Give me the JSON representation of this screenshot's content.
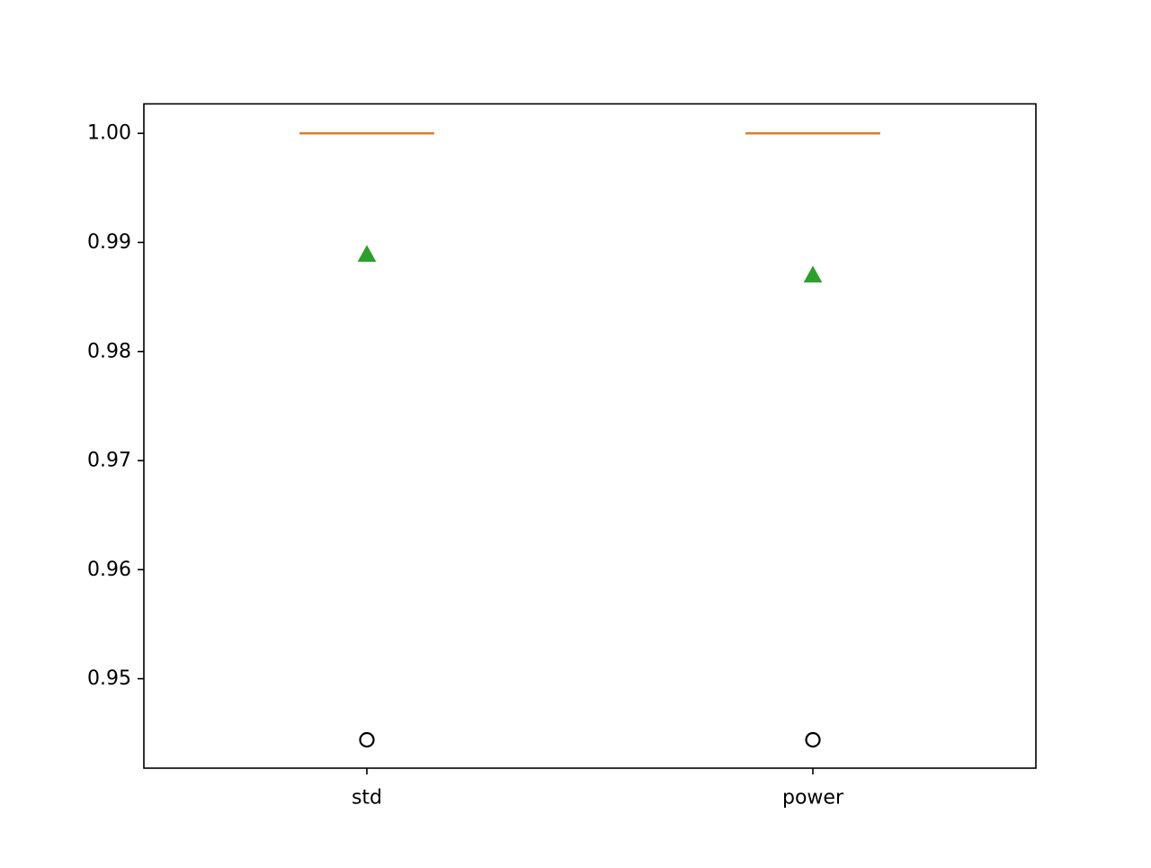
{
  "chart_data": {
    "type": "box",
    "categories": [
      "std",
      "power"
    ],
    "ylim": [
      0.9418,
      1.0027
    ],
    "yticks": [
      0.95,
      0.96,
      0.97,
      0.98,
      0.99,
      1.0
    ],
    "ytick_labels": [
      "0.95",
      "0.96",
      "0.97",
      "0.98",
      "0.99",
      "1.00"
    ],
    "grid": false,
    "series": [
      {
        "category": "std",
        "q1": 1.0,
        "median": 1.0,
        "q3": 1.0,
        "whisker_low": 1.0,
        "whisker_high": 1.0,
        "mean": 0.9889,
        "fliers": [
          0.9444
        ]
      },
      {
        "category": "power",
        "q1": 1.0,
        "median": 1.0,
        "q3": 1.0,
        "whisker_low": 1.0,
        "whisker_high": 1.0,
        "mean": 0.987,
        "fliers": [
          0.9444
        ]
      }
    ],
    "colors": {
      "median": "#e07b29",
      "mean": "#2ca02c",
      "flier": "#000000",
      "axes": "#000000"
    }
  }
}
